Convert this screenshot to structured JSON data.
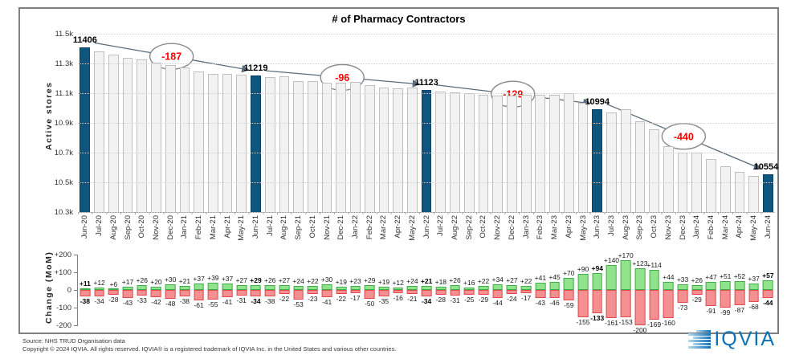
{
  "title": "# of Pharmacy Contractors",
  "colors": {
    "highlight_bar": "#0F567F",
    "highlight_border": "#0A4368",
    "bar_fill": "#F2F2F2",
    "bar_border": "#C0C0C0",
    "positive_fill": "#90E38C",
    "positive_border": "#3FAE49",
    "negative_fill": "#F59092",
    "negative_border": "#E24A4F",
    "annotation_text": "#FF0000",
    "arrow": "#5A6B7B",
    "logo_blue": "#0D72B5"
  },
  "chart_data": [
    {
      "type": "bar",
      "title": "# of Pharmacy Contractors",
      "ylabel": "Active stores",
      "ylim": [
        10300,
        11500
      ],
      "yticks": [
        "11.5k",
        "11.3k",
        "11.1k",
        "10.9k",
        "10.7k",
        "10.5k",
        "10.3k"
      ],
      "grid": "dotted horizontal",
      "categories": [
        "Jun-20",
        "Jul-20",
        "Aug-20",
        "Sep-20",
        "Oct-20",
        "Nov-20",
        "Dec-20",
        "Jan-21",
        "Feb-21",
        "Mar-21",
        "Apr-21",
        "May-21",
        "Jun-21",
        "Jul-21",
        "Aug-21",
        "Sep-21",
        "Oct-21",
        "Nov-21",
        "Dec-21",
        "Jan-22",
        "Feb-22",
        "Mar-22",
        "Apr-22",
        "May-22",
        "Jun-22",
        "Jul-22",
        "Aug-22",
        "Sep-22",
        "Oct-22",
        "Nov-22",
        "Dec-22",
        "Jan-23",
        "Feb-23",
        "Mar-23",
        "Apr-23",
        "May-23",
        "Jun-23",
        "Jul-23",
        "Aug-23",
        "Sep-23",
        "Oct-23",
        "Nov-23",
        "Dec-23",
        "Jan-24",
        "Feb-24",
        "Mar-24",
        "Apr-24",
        "May-24",
        "Jun-24"
      ],
      "values": [
        11406,
        11384,
        11362,
        11336,
        11329,
        11307,
        11289,
        11272,
        11248,
        11232,
        11228,
        11224,
        11219,
        11207,
        11212,
        11183,
        11182,
        11171,
        11168,
        11174,
        11153,
        11137,
        11133,
        11136,
        11123,
        11113,
        11108,
        11099,
        11092,
        11082,
        11085,
        11090,
        11088,
        11087,
        11098,
        11033,
        10994,
        10973,
        10990,
        10913,
        10858,
        10742,
        10702,
        10699,
        10655,
        10607,
        10572,
        10541,
        10554
      ],
      "highlighted_indices": [
        0,
        12,
        24,
        36,
        48
      ],
      "bar_labels": {
        "0": "11406",
        "12": "11219",
        "24": "11123",
        "36": "10994",
        "48": "10554"
      },
      "annotations": [
        {
          "text": "-187",
          "from_index": 0,
          "to_index": 12
        },
        {
          "text": "-96",
          "from_index": 12,
          "to_index": 24
        },
        {
          "text": "-129",
          "from_index": 24,
          "to_index": 36
        },
        {
          "text": "-440",
          "from_index": 36,
          "to_index": 48
        }
      ]
    },
    {
      "type": "bar",
      "ylabel": "Change (MoM)",
      "ylim": [
        -200,
        200
      ],
      "yticks": [
        "+200",
        "+100",
        "0",
        "-100",
        "-200"
      ],
      "categories": [
        "Jun-20",
        "Jul-20",
        "Aug-20",
        "Sep-20",
        "Oct-20",
        "Nov-20",
        "Dec-20",
        "Jan-21",
        "Feb-21",
        "Mar-21",
        "Apr-21",
        "May-21",
        "Jun-21",
        "Jul-21",
        "Aug-21",
        "Sep-21",
        "Oct-21",
        "Nov-21",
        "Dec-21",
        "Jan-22",
        "Feb-22",
        "Mar-22",
        "Apr-22",
        "May-22",
        "Jun-22",
        "Jul-22",
        "Aug-22",
        "Sep-22",
        "Oct-22",
        "Nov-22",
        "Dec-22",
        "Jan-23",
        "Feb-23",
        "Mar-23",
        "Apr-23",
        "May-23",
        "Jun-23",
        "Jul-23",
        "Aug-23",
        "Sep-23",
        "Oct-23",
        "Nov-23",
        "Dec-23",
        "Jan-24",
        "Feb-24",
        "Mar-24",
        "Apr-24",
        "May-24",
        "Jun-24"
      ],
      "series": [
        {
          "name": "monthly gains",
          "values": [
            11,
            12,
            6,
            17,
            26,
            20,
            30,
            21,
            37,
            39,
            37,
            27,
            29,
            26,
            27,
            24,
            22,
            30,
            19,
            23,
            29,
            19,
            12,
            24,
            21,
            18,
            26,
            16,
            22,
            34,
            27,
            22,
            41,
            45,
            70,
            90,
            94,
            140,
            170,
            123,
            114,
            44,
            33,
            26,
            47,
            51,
            52,
            37,
            57
          ]
        },
        {
          "name": "monthly losses",
          "values": [
            -38,
            -34,
            -28,
            -43,
            -33,
            -42,
            -48,
            -38,
            -61,
            -55,
            -41,
            -31,
            -34,
            -38,
            -22,
            -53,
            -23,
            -41,
            -22,
            -17,
            -50,
            -35,
            -16,
            -21,
            -34,
            -28,
            -31,
            -25,
            -29,
            -44,
            -24,
            -17,
            -43,
            -46,
            -59,
            -155,
            -133,
            -161,
            -153,
            -200,
            -169,
            -160,
            -73,
            -29,
            -91,
            -99,
            -87,
            -68,
            -44
          ]
        }
      ],
      "bold_indices": [
        0,
        12,
        24,
        36,
        48
      ]
    }
  ],
  "footer": {
    "source": "Source: NHS TRUD Organisation data",
    "copyright": "Copyright © 2024 IQVIA. All rights reserved. IQVIA® is a registered trademark of IQVIA Inc. in the United States and various other countries.",
    "logo_text": "IQVIA"
  }
}
